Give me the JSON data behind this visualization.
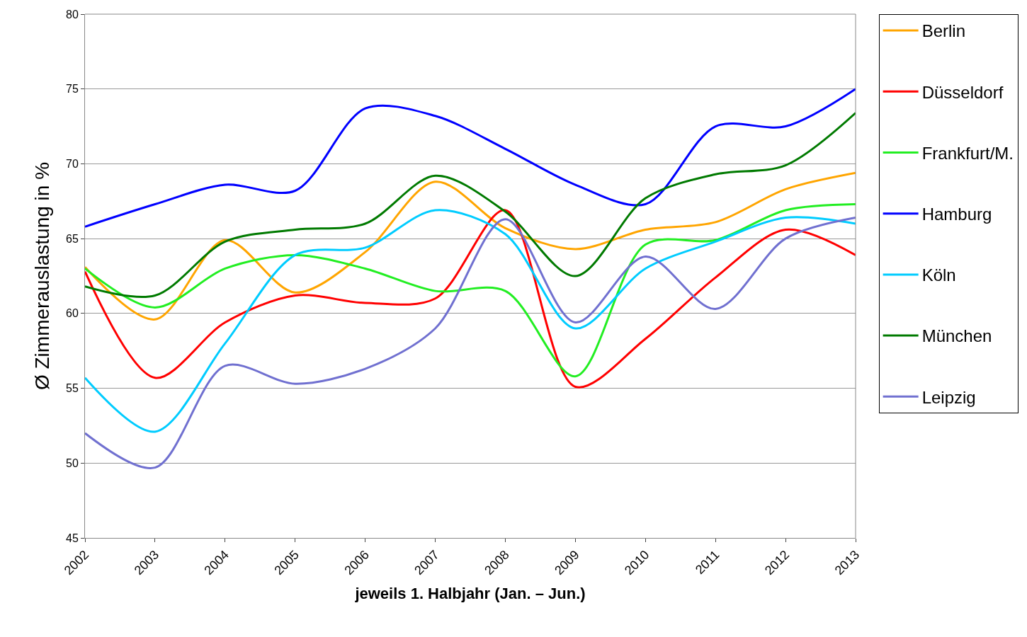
{
  "chart_data": {
    "type": "line",
    "xlabel": "jeweils 1. Halbjahr (Jan. – Jun.)",
    "ylabel": "Ø Zimmerauslastung in %",
    "x": [
      2002,
      2003,
      2004,
      2005,
      2006,
      2007,
      2008,
      2009,
      2010,
      2011,
      2012,
      2013
    ],
    "xlim": [
      2002,
      2013
    ],
    "xticks": [
      2002,
      2003,
      2004,
      2005,
      2006,
      2007,
      2008,
      2009,
      2010,
      2011,
      2012,
      2013
    ],
    "ylim": [
      45,
      80
    ],
    "yticks": [
      45,
      50,
      55,
      60,
      65,
      70,
      75,
      80
    ],
    "grid": "y",
    "legend": "right",
    "marker": "none",
    "line_style": "solid",
    "series": [
      {
        "name": "Berlin",
        "color": "#ffa500",
        "values": [
          63.1,
          59.6,
          64.9,
          61.4,
          64.1,
          68.8,
          65.7,
          64.3,
          65.6,
          66.1,
          68.3,
          69.4
        ]
      },
      {
        "name": "Düsseldorf",
        "color": "#ff0000",
        "values": [
          62.8,
          55.7,
          59.4,
          61.2,
          60.7,
          61.0,
          66.9,
          55.1,
          58.3,
          62.4,
          65.6,
          63.9
        ]
      },
      {
        "name": "Frankfurt/M.",
        "color": "#22ee22",
        "values": [
          63.0,
          60.4,
          63.0,
          63.9,
          63.0,
          61.5,
          61.5,
          55.8,
          64.6,
          64.9,
          66.9,
          67.3
        ]
      },
      {
        "name": "Hamburg",
        "color": "#0000ff",
        "values": [
          65.8,
          67.3,
          68.6,
          68.2,
          73.7,
          73.2,
          71.0,
          68.6,
          67.3,
          72.5,
          72.5,
          75.0
        ]
      },
      {
        "name": "Köln",
        "color": "#00ccff",
        "values": [
          55.7,
          52.1,
          58.0,
          63.9,
          64.4,
          66.9,
          65.3,
          59.0,
          63.0,
          64.8,
          66.4,
          66.0
        ]
      },
      {
        "name": "München",
        "color": "#007a00",
        "values": [
          61.8,
          61.2,
          64.8,
          65.6,
          66.0,
          69.2,
          66.8,
          62.5,
          67.7,
          69.3,
          69.9,
          73.4
        ]
      },
      {
        "name": "Leipzig",
        "color": "#7070d0",
        "values": [
          52.0,
          49.7,
          56.5,
          55.3,
          56.3,
          59.0,
          66.3,
          59.4,
          63.8,
          60.3,
          65.0,
          66.4
        ]
      }
    ]
  }
}
